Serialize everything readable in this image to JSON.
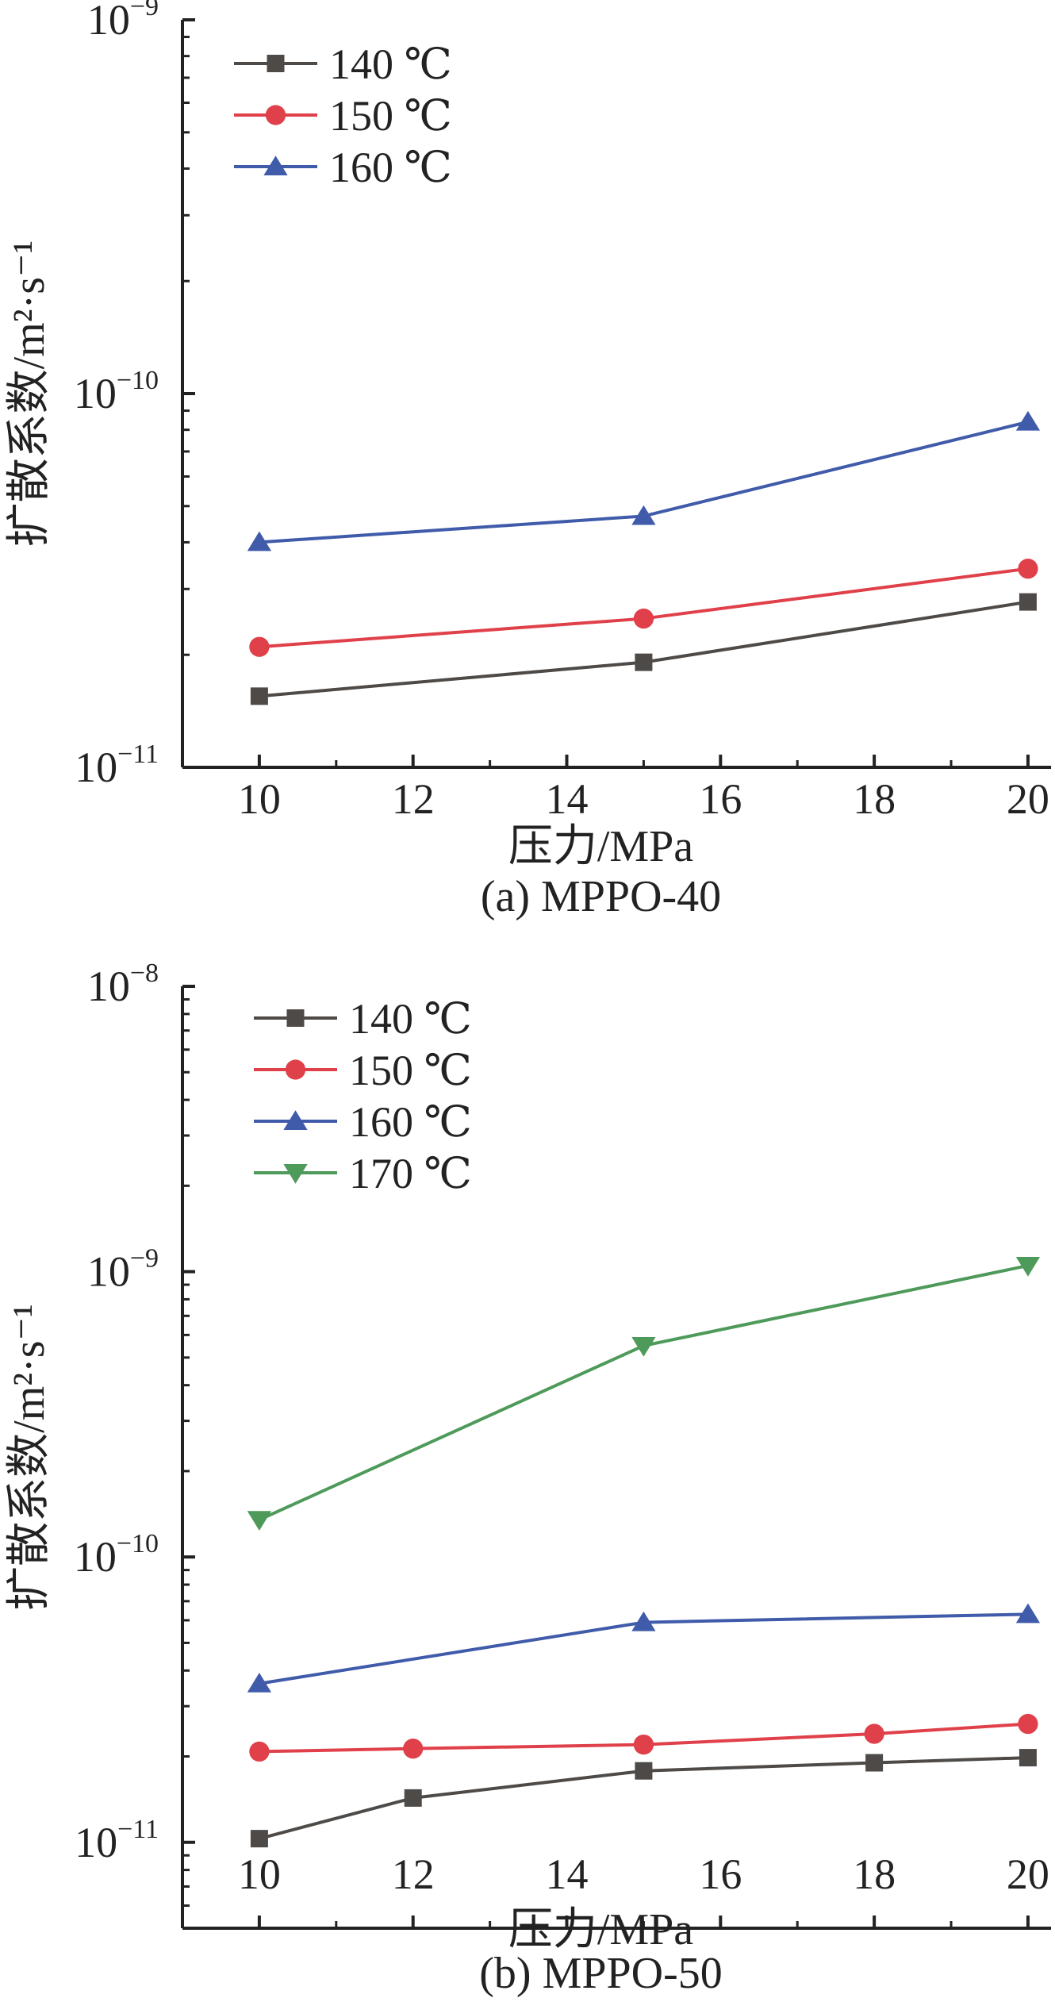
{
  "chart_data": [
    {
      "type": "line",
      "caption": "(a) MPPO-40",
      "xlabel": "压力/MPa",
      "ylabel": "扩散系数/m²·s⁻¹",
      "xlim": [
        9,
        20.3
      ],
      "ylim": [
        1e-11,
        1e-09
      ],
      "yscale": "log",
      "xticks": [
        10,
        12,
        14,
        16,
        18,
        20
      ],
      "yticks": [
        {
          "value": 1e-11,
          "base": "10",
          "exp": "−11"
        },
        {
          "value": 1e-10,
          "base": "10",
          "exp": "−10"
        },
        {
          "value": 1e-09,
          "base": "10",
          "exp": "−9"
        }
      ],
      "legend_position": "top-left",
      "series": [
        {
          "name": "140 ℃",
          "color": "#4d4a47",
          "marker": "square",
          "x": [
            10,
            15,
            20
          ],
          "y": [
            1.55e-11,
            1.91e-11,
            2.77e-11
          ]
        },
        {
          "name": "150 ℃",
          "color": "#e0404a",
          "marker": "circle",
          "x": [
            10,
            15,
            20
          ],
          "y": [
            2.1e-11,
            2.5e-11,
            3.4e-11
          ]
        },
        {
          "name": "160 ℃",
          "color": "#3f5ba9",
          "marker": "triangle-up",
          "x": [
            10,
            15,
            20
          ],
          "y": [
            4e-11,
            4.7e-11,
            8.4e-11
          ]
        }
      ]
    },
    {
      "type": "line",
      "caption": "(b) MPPO-50",
      "xlabel": "压力/MPa",
      "ylabel": "扩散系数/m²·s⁻¹",
      "xlim": [
        9,
        20.3
      ],
      "ylim": [
        5e-12,
        1e-08
      ],
      "yscale": "log",
      "xticks": [
        10,
        12,
        14,
        16,
        18,
        20
      ],
      "yticks": [
        {
          "value": 1e-11,
          "base": "10",
          "exp": "−11"
        },
        {
          "value": 1e-10,
          "base": "10",
          "exp": "−10"
        },
        {
          "value": 1e-09,
          "base": "10",
          "exp": "−9"
        },
        {
          "value": 1e-08,
          "base": "10",
          "exp": "−8"
        }
      ],
      "legend_position": "top-left",
      "series": [
        {
          "name": "140 ℃",
          "color": "#4d4a47",
          "marker": "square",
          "x": [
            10,
            12,
            15,
            18,
            20
          ],
          "y": [
            1.03e-11,
            1.43e-11,
            1.78e-11,
            1.9e-11,
            1.98e-11
          ]
        },
        {
          "name": "150 ℃",
          "color": "#e0404a",
          "marker": "circle",
          "x": [
            10,
            12,
            15,
            18,
            20
          ],
          "y": [
            2.08e-11,
            2.13e-11,
            2.2e-11,
            2.4e-11,
            2.6e-11
          ]
        },
        {
          "name": "160 ℃",
          "color": "#3f5ba9",
          "marker": "triangle-up",
          "x": [
            10,
            15,
            20
          ],
          "y": [
            3.6e-11,
            5.9e-11,
            6.3e-11
          ]
        },
        {
          "name": "170 ℃",
          "color": "#4e9a5a",
          "marker": "triangle-down",
          "x": [
            10,
            15,
            20
          ],
          "y": [
            1.35e-10,
            5.5e-10,
            1.05e-09
          ]
        }
      ]
    }
  ]
}
